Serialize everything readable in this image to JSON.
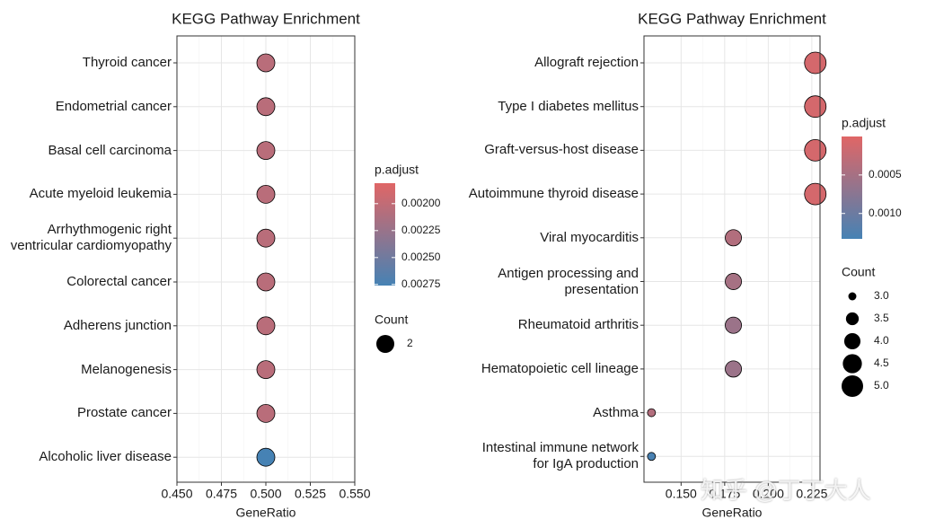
{
  "chart_data": [
    {
      "type": "scatter",
      "title": "KEGG Pathway Enrichment",
      "x_label": "GeneRatio",
      "categories": [
        "Thyroid cancer",
        "Endometrial cancer",
        "Basal cell carcinoma",
        "Acute myeloid leukemia",
        "Arrhythmogenic right\nventricular cardiomyopathy",
        "Colorectal cancer",
        "Adherens junction",
        "Melanogenesis",
        "Prostate cancer",
        "Alcoholic liver disease"
      ],
      "x": [
        0.5,
        0.5,
        0.5,
        0.5,
        0.5,
        0.5,
        0.5,
        0.5,
        0.5,
        0.5
      ],
      "color_values": [
        0.00205,
        0.00205,
        0.00205,
        0.00205,
        0.00205,
        0.00205,
        0.00205,
        0.00205,
        0.00205,
        0.00276
      ],
      "size_values": [
        2,
        2,
        2,
        2,
        2,
        2,
        2,
        2,
        2,
        2
      ],
      "xlim": [
        0.45,
        0.55
      ],
      "xticks": [
        {
          "value": 0.45,
          "label": "0.450"
        },
        {
          "value": 0.475,
          "label": "0.475"
        },
        {
          "value": 0.5,
          "label": "0.500"
        },
        {
          "value": 0.525,
          "label": "0.525"
        },
        {
          "value": 0.55,
          "label": "0.550"
        }
      ],
      "color_title": "p.adjust",
      "color_lim": [
        0.00181,
        0.00276
      ],
      "colors": [
        "#e06666",
        "#4682b4"
      ],
      "color_ticks": [
        {
          "value": 0.002,
          "label": "0.00200"
        },
        {
          "value": 0.00225,
          "label": "0.00225"
        },
        {
          "value": 0.0025,
          "label": "0.00250"
        },
        {
          "value": 0.00275,
          "label": "0.00275"
        }
      ],
      "size_title": "Count",
      "size_ticks": [
        2
      ],
      "grid": true
    },
    {
      "type": "scatter",
      "title": "KEGG Pathway Enrichment",
      "x_label": "GeneRatio",
      "categories": [
        "Allograft rejection",
        "Type I diabetes mellitus",
        "Graft-versus-host disease",
        "Autoimmune thyroid disease",
        "Viral myocarditis",
        "Antigen processing and\npresentation",
        "Rheumatoid arthritis",
        "Hematopoietic cell lineage",
        "Asthma",
        "Intestinal immune network\nfor IgA production"
      ],
      "x": [
        0.227,
        0.227,
        0.227,
        0.227,
        0.18,
        0.18,
        0.18,
        0.18,
        0.133,
        0.133
      ],
      "color_values": [
        0.0001,
        0.0001,
        0.0001,
        0.0001,
        0.0004,
        0.0005,
        0.0006,
        0.0006,
        0.0004,
        0.0013
      ],
      "size_values": [
        5,
        5,
        5,
        5,
        4,
        4,
        4,
        4,
        3,
        3
      ],
      "xlim": [
        0.1287,
        0.2297
      ],
      "xticks": [
        {
          "value": 0.15,
          "label": "0.150"
        },
        0.175,
        {
          "value": 0.2,
          "label": "0.200"
        },
        0.225
      ],
      "color_title": "p.adjust",
      "color_lim": [
        0.0,
        0.00133
      ],
      "colors": [
        "#e06666",
        "#4682b4"
      ],
      "color_ticks": [
        0.0005,
        {
          "value": 0.001,
          "label": "0.0010"
        }
      ],
      "size_title": "Count",
      "size_ticks": [
        {
          "value": 3,
          "label": "3.0"
        },
        3.5,
        {
          "value": 4,
          "label": "4.0"
        },
        4.5,
        {
          "value": 5,
          "label": "5.0"
        }
      ],
      "annotations": [
        "知乎 @丁丁大人"
      ],
      "grid": true
    }
  ]
}
